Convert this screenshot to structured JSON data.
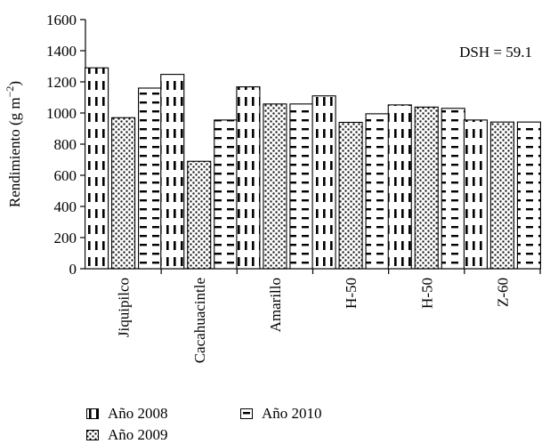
{
  "chart_data": {
    "type": "bar",
    "categories": [
      "Jiquipilco",
      "Cacahuacintle",
      "Amarillo",
      "H-50",
      "H-50",
      "Z-60"
    ],
    "series": [
      {
        "name": "Año 2008",
        "values": [
          1290,
          1248,
          1168,
          1110,
          1052,
          955
        ]
      },
      {
        "name": "Año 2009",
        "values": [
          970,
          690,
          1058,
          940,
          1038,
          942
        ]
      },
      {
        "name": "Año 2010",
        "values": [
          1160,
          955,
          1058,
          995,
          1030,
          942
        ]
      }
    ],
    "ylabel": "Rendimiento (g m",
    "ylabel_sup": "−2",
    "ylabel_close": ")",
    "ylim": [
      0,
      1600
    ],
    "yticks": [
      0,
      200,
      400,
      600,
      800,
      1000,
      1200,
      1400,
      1600
    ],
    "annotation": "DSH = 59.1",
    "legend_position": "bottom-left"
  }
}
